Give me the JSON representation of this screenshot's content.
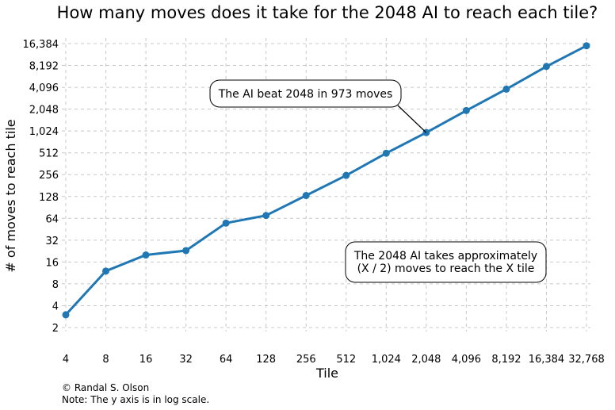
{
  "chart_data": {
    "type": "line",
    "title": "How many moves does it take for the 2048 AI to reach each tile?",
    "xlabel": "Tile",
    "ylabel": "# of moves to reach tile",
    "x_scale": "log2",
    "y_scale": "log2",
    "grid": true,
    "x_ticks": [
      "4",
      "8",
      "16",
      "32",
      "64",
      "128",
      "256",
      "512",
      "1,024",
      "2,048",
      "4,096",
      "8,192",
      "16,384",
      "32,768"
    ],
    "y_ticks": [
      "2",
      "4",
      "8",
      "16",
      "32",
      "64",
      "128",
      "256",
      "512",
      "1,024",
      "2,048",
      "4,096",
      "8,192",
      "16,384"
    ],
    "series": [
      {
        "x": [
          4,
          8,
          16,
          32,
          64,
          128,
          256,
          512,
          1024,
          2048,
          4096,
          8192,
          16384,
          32768
        ],
        "y": [
          3,
          12,
          20,
          23,
          55,
          70,
          132,
          250,
          505,
          973,
          1960,
          3860,
          7940,
          15300
        ],
        "color": "#1f77b4"
      }
    ],
    "annotations": [
      {
        "text": "The AI beat 2048 in 973 moves",
        "points_to": {
          "x": 2048,
          "y": 973
        }
      },
      {
        "text_lines": [
          "The 2048 AI takes approximately",
          "(X / 2) moves to reach the X tile"
        ]
      }
    ]
  },
  "footer": {
    "credit": "© Randal S. Olson",
    "note": "Note: The y axis is in log scale."
  }
}
